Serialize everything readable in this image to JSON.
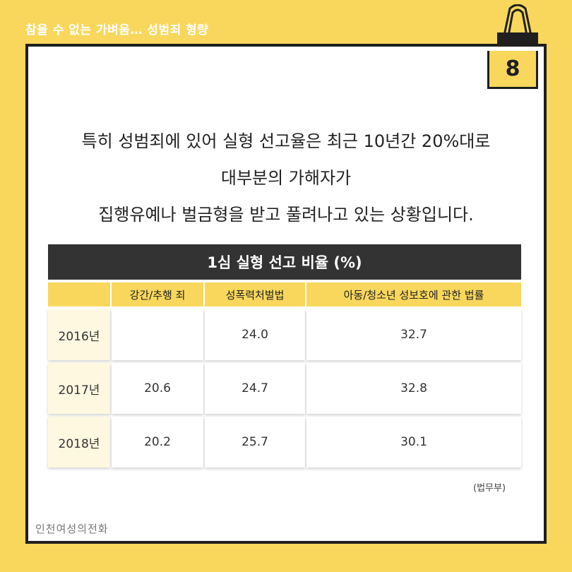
{
  "header": {
    "title": "참을 수 없는 가벼움… 성범죄 형량"
  },
  "page_number": "8",
  "intro": {
    "line1": "특히 성범죄에 있어 실형 선고율은 최근 10년간 20%대로",
    "line2": "대부분의 가해자가",
    "line3": "집행유예나 벌금형을 받고 풀려나고 있는 상황입니다."
  },
  "table": {
    "title": "1심 실형 선고 비율 (%)",
    "columns": [
      "강간/추행 죄",
      "성폭력처벌법",
      "아동/청소년 성보호에 관한 법률"
    ],
    "rows": [
      {
        "year": "2016년",
        "values": [
          "",
          "24.0",
          "32.7"
        ]
      },
      {
        "year": "2017년",
        "values": [
          "20.6",
          "24.7",
          "32.8"
        ]
      },
      {
        "year": "2018년",
        "values": [
          "20.2",
          "25.7",
          "30.1"
        ]
      }
    ]
  },
  "source": "(법무부)",
  "logo": "인천여성의전화"
}
